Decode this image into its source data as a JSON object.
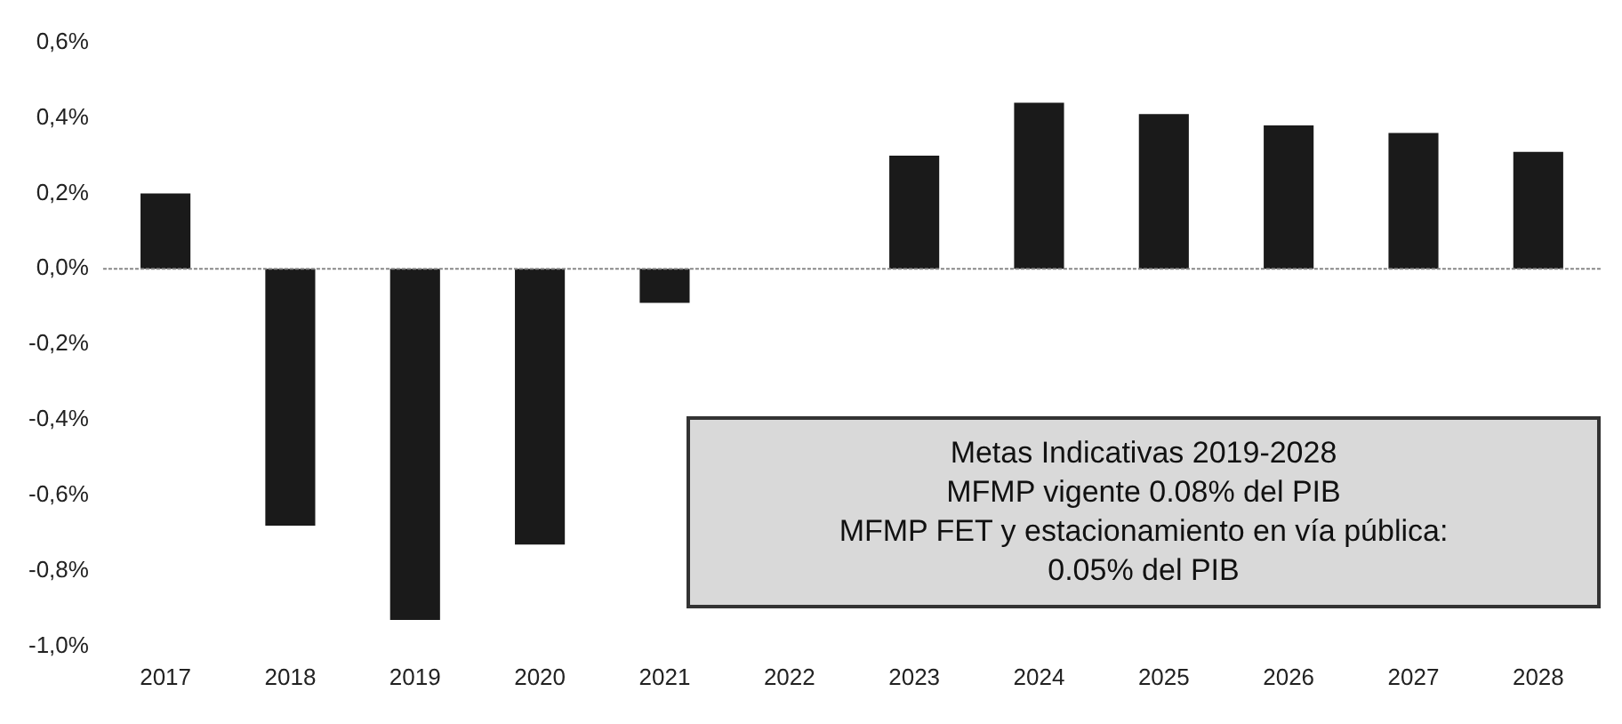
{
  "chart_data": {
    "type": "bar",
    "categories": [
      "2017",
      "2018",
      "2019",
      "2020",
      "2021",
      "2022",
      "2023",
      "2024",
      "2025",
      "2026",
      "2027",
      "2028"
    ],
    "values": [
      0.2,
      -0.68,
      -0.93,
      -0.73,
      -0.09,
      0,
      0.3,
      0.44,
      0.41,
      0.38,
      0.36,
      0.31
    ],
    "color": "#1a1a1a",
    "ylim": [
      -1.0,
      0.6
    ],
    "yticks": [
      {
        "value": -1.0,
        "label": "-1,0%"
      },
      {
        "value": -0.8,
        "label": "-0,8%"
      },
      {
        "value": -0.6,
        "label": "-0,6%"
      },
      {
        "value": -0.4,
        "label": "-0,4%"
      },
      {
        "value": -0.2,
        "label": "-0,2%"
      },
      {
        "value": 0,
        "label": "0,0%"
      },
      {
        "value": 0.2,
        "label": "0,2%"
      },
      {
        "value": 0.4,
        "label": "0,4%"
      },
      {
        "value": 0.6,
        "label": "0,6%"
      }
    ],
    "grid": false,
    "legend": false,
    "ref_lines": [
      {
        "axis": "y",
        "value": 0,
        "color": "#888888",
        "line_style": "dotted"
      }
    ],
    "annotations": [
      "Metas Indicativas 2019-2028",
      "MFMP vigente 0.08% del PIB",
      "MFMP FET y estacionamiento en vía pública:",
      "0.05% del PIB"
    ]
  }
}
